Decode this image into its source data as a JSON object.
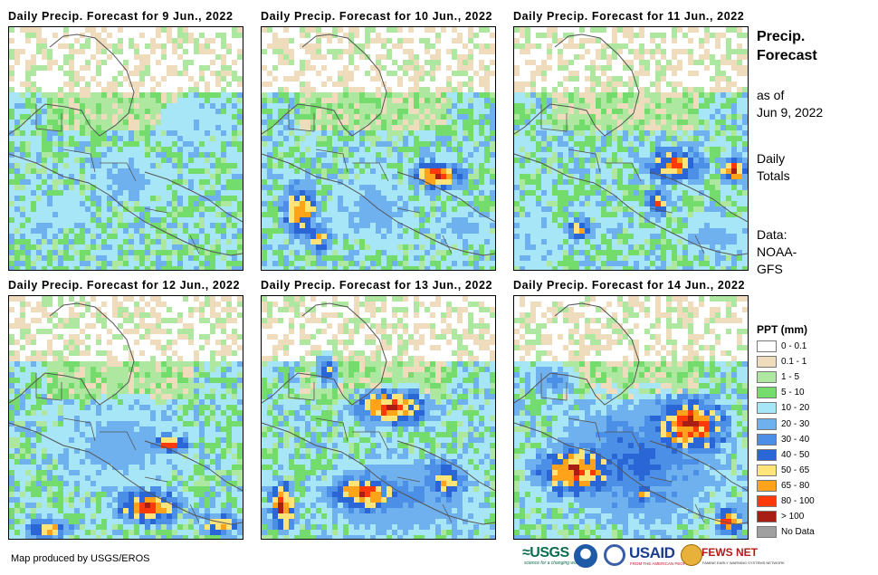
{
  "panels": [
    {
      "title": "Daily Precip. Forecast for 9 Jun., 2022",
      "date": "2022-06-09"
    },
    {
      "title": "Daily Precip. Forecast for 10 Jun., 2022",
      "date": "2022-06-10"
    },
    {
      "title": "Daily Precip. Forecast for 11 Jun., 2022",
      "date": "2022-06-11"
    },
    {
      "title": "Daily Precip. Forecast for 12 Jun., 2022",
      "date": "2022-06-12"
    },
    {
      "title": "Daily Precip. Forecast for 13 Jun., 2022",
      "date": "2022-06-13"
    },
    {
      "title": "Daily Precip. Forecast for 14 Jun., 2022",
      "date": "2022-06-14"
    }
  ],
  "side": {
    "heading_line1": "Precip.",
    "heading_line2": "Forecast",
    "asof_line1": "as of",
    "asof_line2": "Jun 9, 2022",
    "totals_line1": "Daily",
    "totals_line2": "Totals",
    "data_line1": "Data:",
    "data_line2": "NOAA-",
    "data_line3": "GFS"
  },
  "legend": {
    "title": "PPT (mm)",
    "items": [
      {
        "label": "0 - 0.1",
        "color": "#ffffff"
      },
      {
        "label": "0.1 - 1",
        "color": "#efdcbc"
      },
      {
        "label": "1 - 5",
        "color": "#aee7a0"
      },
      {
        "label": "5 - 10",
        "color": "#74dc6c"
      },
      {
        "label": "10 - 20",
        "color": "#a6e6f6"
      },
      {
        "label": "20 - 30",
        "color": "#6fb0ee"
      },
      {
        "label": "30 - 40",
        "color": "#4b8fe6"
      },
      {
        "label": "40 - 50",
        "color": "#2a66d6"
      },
      {
        "label": "50 - 65",
        "color": "#ffe47a"
      },
      {
        "label": "65 - 80",
        "color": "#ffa31a"
      },
      {
        "label": "80 - 100",
        "color": "#ff3a0a"
      },
      {
        "label": "> 100",
        "color": "#a81d14"
      },
      {
        "label": "No Data",
        "color": "#a0a0a0"
      }
    ]
  },
  "credit": "Map produced by USGS/EROS",
  "logos": {
    "usgs": "≈USGS",
    "usgs_tagline": "science for a changing world",
    "noaa": "noaa-logo",
    "usaid": "USAID",
    "usaid_tagline": "FROM THE AMERICAN PEOPLE",
    "fews": "FEWS NET",
    "fews_tagline": "FAMINE EARLY WARNING SYSTEMS NETWORK"
  }
}
